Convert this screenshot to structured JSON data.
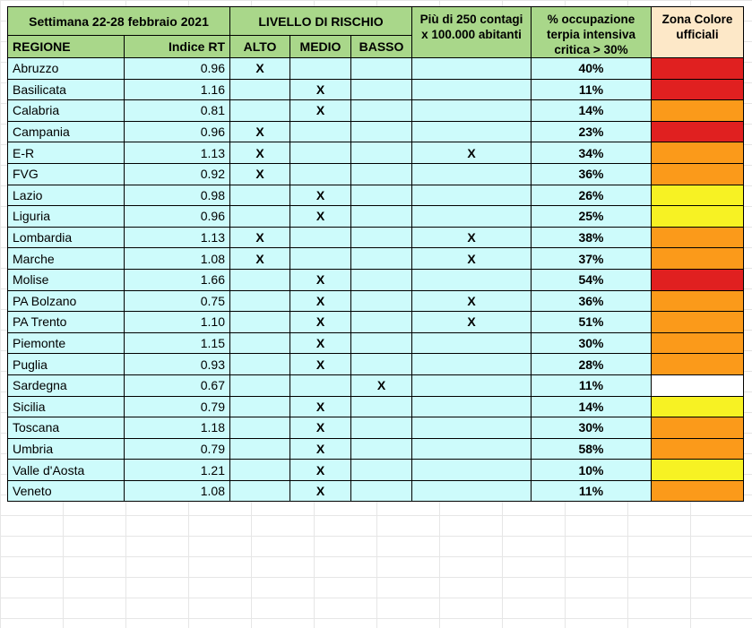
{
  "header": {
    "week": "Settimana 22-28 febbraio 2021",
    "risk_level": "LIVELLO DI RISCHIO",
    "contagi": "Più di 250 contagi x 100.000 abitanti",
    "occupazione": "% occupazione terpia intensiva critica > 30%",
    "zona": "Zona Colore ufficiali",
    "regione": "REGIONE",
    "indice_rt": "Indice RT",
    "alto": "ALTO",
    "medio": "MEDIO",
    "basso": "BASSO"
  },
  "zone_colors": {
    "rossa": "#e02020",
    "arancione": "#fb9a1a",
    "gialla": "#f7f223",
    "bianca": "#ffffff"
  },
  "rows": [
    {
      "regione": "Abruzzo",
      "rt": "0.96",
      "alto": "X",
      "medio": "",
      "basso": "",
      "contagi": "",
      "occ": "40%",
      "zona": "rossa"
    },
    {
      "regione": "Basilicata",
      "rt": "1.16",
      "alto": "",
      "medio": "X",
      "basso": "",
      "contagi": "",
      "occ": "11%",
      "zona": "rossa"
    },
    {
      "regione": "Calabria",
      "rt": "0.81",
      "alto": "",
      "medio": "X",
      "basso": "",
      "contagi": "",
      "occ": "14%",
      "zona": "arancione"
    },
    {
      "regione": "Campania",
      "rt": "0.96",
      "alto": "X",
      "medio": "",
      "basso": "",
      "contagi": "",
      "occ": "23%",
      "zona": "rossa"
    },
    {
      "regione": "E-R",
      "rt": "1.13",
      "alto": "X",
      "medio": "",
      "basso": "",
      "contagi": "X",
      "occ": "34%",
      "zona": "arancione"
    },
    {
      "regione": "FVG",
      "rt": "0.92",
      "alto": "X",
      "medio": "",
      "basso": "",
      "contagi": "",
      "occ": "36%",
      "zona": "arancione"
    },
    {
      "regione": "Lazio",
      "rt": "0.98",
      "alto": "",
      "medio": "X",
      "basso": "",
      "contagi": "",
      "occ": "26%",
      "zona": "gialla"
    },
    {
      "regione": "Liguria",
      "rt": "0.96",
      "alto": "",
      "medio": "X",
      "basso": "",
      "contagi": "",
      "occ": "25%",
      "zona": "gialla"
    },
    {
      "regione": "Lombardia",
      "rt": "1.13",
      "alto": "X",
      "medio": "",
      "basso": "",
      "contagi": "X",
      "occ": "38%",
      "zona": "arancione"
    },
    {
      "regione": "Marche",
      "rt": "1.08",
      "alto": "X",
      "medio": "",
      "basso": "",
      "contagi": "X",
      "occ": "37%",
      "zona": "arancione"
    },
    {
      "regione": "Molise",
      "rt": "1.66",
      "alto": "",
      "medio": "X",
      "basso": "",
      "contagi": "",
      "occ": "54%",
      "zona": "rossa"
    },
    {
      "regione": "PA Bolzano",
      "rt": "0.75",
      "alto": "",
      "medio": "X",
      "basso": "",
      "contagi": "X",
      "occ": "36%",
      "zona": "arancione"
    },
    {
      "regione": "PA Trento",
      "rt": "1.10",
      "alto": "",
      "medio": "X",
      "basso": "",
      "contagi": "X",
      "occ": "51%",
      "zona": "arancione"
    },
    {
      "regione": "Piemonte",
      "rt": "1.15",
      "alto": "",
      "medio": "X",
      "basso": "",
      "contagi": "",
      "occ": "30%",
      "zona": "arancione"
    },
    {
      "regione": "Puglia",
      "rt": "0.93",
      "alto": "",
      "medio": "X",
      "basso": "",
      "contagi": "",
      "occ": "28%",
      "zona": "arancione"
    },
    {
      "regione": "Sardegna",
      "rt": "0.67",
      "alto": "",
      "medio": "",
      "basso": "X",
      "contagi": "",
      "occ": "11%",
      "zona": "bianca"
    },
    {
      "regione": "Sicilia",
      "rt": "0.79",
      "alto": "",
      "medio": "X",
      "basso": "",
      "contagi": "",
      "occ": "14%",
      "zona": "gialla"
    },
    {
      "regione": "Toscana",
      "rt": "1.18",
      "alto": "",
      "medio": "X",
      "basso": "",
      "contagi": "",
      "occ": "30%",
      "zona": "arancione"
    },
    {
      "regione": "Umbria",
      "rt": "0.79",
      "alto": "",
      "medio": "X",
      "basso": "",
      "contagi": "",
      "occ": "58%",
      "zona": "arancione"
    },
    {
      "regione": "Valle d'Aosta",
      "rt": "1.21",
      "alto": "",
      "medio": "X",
      "basso": "",
      "contagi": "",
      "occ": "10%",
      "zona": "gialla"
    },
    {
      "regione": "Veneto",
      "rt": "1.08",
      "alto": "",
      "medio": "X",
      "basso": "",
      "contagi": "",
      "occ": "11%",
      "zona": "arancione"
    }
  ]
}
